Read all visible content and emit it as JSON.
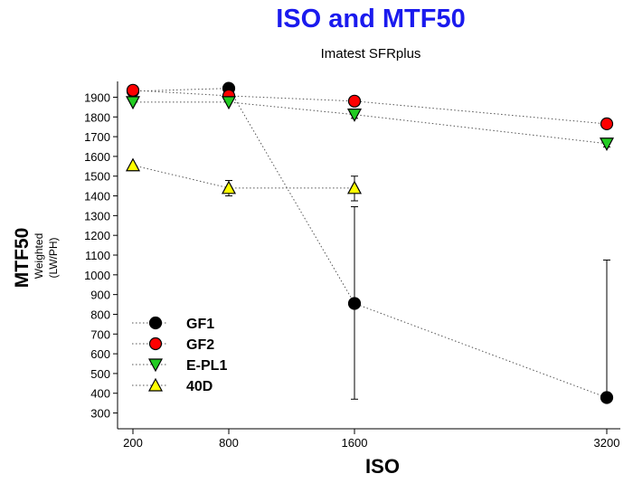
{
  "chart_data": {
    "type": "scatter",
    "title": "ISO and MTF50",
    "subtitle": "Imatest SFRplus",
    "xlabel": "ISO",
    "ylabel": "MTF50",
    "ylabel_sub1": "Weighted",
    "ylabel_sub2": "(LW/PH)",
    "x_ticks": [
      "200",
      "800",
      "1600",
      "3200"
    ],
    "y_ticks": [
      300,
      400,
      500,
      600,
      700,
      800,
      900,
      1000,
      1100,
      1200,
      1300,
      1400,
      1500,
      1600,
      1700,
      1800,
      1900
    ],
    "ylim": [
      220,
      1980
    ],
    "legend_position": "lower-left",
    "series": [
      {
        "name": "GF1",
        "marker": "circle",
        "color": "#000000",
        "values": [
          1930,
          1945,
          855,
          378
        ],
        "err_low": [
          null,
          null,
          370,
          null
        ],
        "err_high": [
          null,
          null,
          1345,
          1075
        ]
      },
      {
        "name": "GF2",
        "marker": "circle",
        "color": "#ff0000",
        "values": [
          1935,
          1907,
          1880,
          1765
        ],
        "err_low": [
          null,
          null,
          null,
          1745
        ],
        "err_high": [
          null,
          null,
          null,
          1785
        ]
      },
      {
        "name": "E-PL1",
        "marker": "triangle-down",
        "color": "#22cc22",
        "values": [
          1875,
          1875,
          1812,
          1665
        ],
        "err_low": [
          null,
          null,
          1793,
          1648
        ],
        "err_high": [
          null,
          null,
          1833,
          1685
        ]
      },
      {
        "name": "40D",
        "marker": "triangle-up",
        "color": "#ffff00",
        "values": [
          1555,
          1440,
          1440,
          null
        ],
        "err_low": [
          null,
          1400,
          1375,
          null
        ],
        "err_high": [
          null,
          1478,
          1500,
          null
        ]
      }
    ]
  }
}
